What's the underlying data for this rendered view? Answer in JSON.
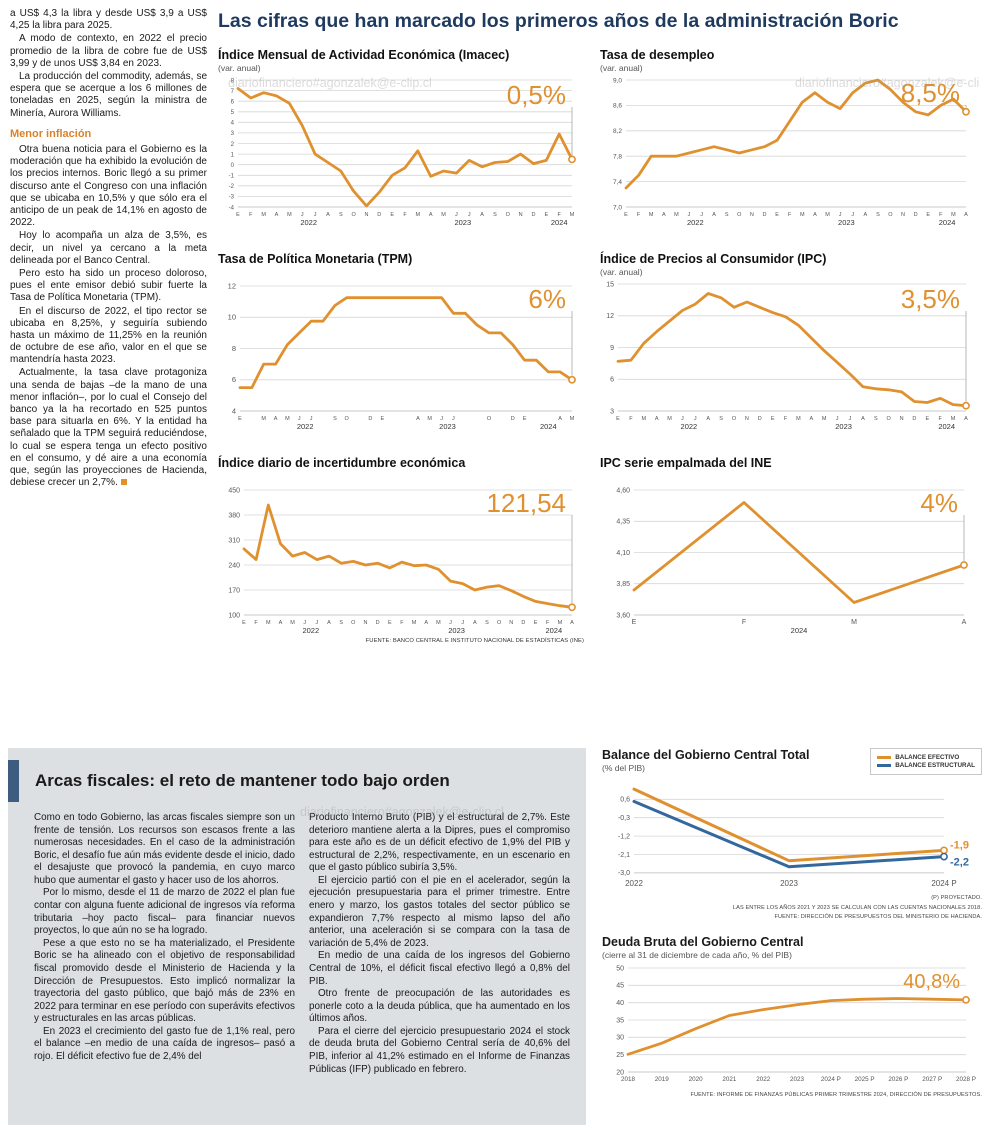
{
  "watermark": "diariofinanciero#agonzalek@e-clip.cl",
  "colors": {
    "accent": "#E0912F",
    "blue": "#33689E",
    "navy": "#1E3A5F",
    "graybox": "#DCE0E3",
    "bar": "#3D5C80"
  },
  "left_column": {
    "p1": "a US$ 4,3 la libra y desde US$ 3,9 a US$ 4,25 la libra para 2025.",
    "p2": "A modo de contexto, en 2022 el precio promedio de la libra de cobre fue de US$ 3,99 y de unos US$ 3,84 en 2023.",
    "p3": "La producción del commodity, además, se espera que se acerque a los 6 millones de toneladas en 2025, según la ministra de Minería, Aurora Williams.",
    "subhead": "Menor inflación",
    "p4": "Otra buena noticia para el Gobierno es la moderación que ha exhibido la evolución de los precios internos. Boric llegó a su primer discurso ante el Congreso con una inflación que se ubicaba en 10,5% y que sólo era el anticipo de un peak de 14,1% en agosto de 2022.",
    "p5": "Hoy lo acompaña un alza de 3,5%, es decir, un nivel ya cercano a la meta delineada por el Banco Central.",
    "p6": "Pero esto ha sido un proceso doloroso, pues el ente emisor debió subir fuerte la Tasa de Política Monetaria (TPM).",
    "p7": "En el discurso de 2022, el tipo rector se ubicaba en 8,25%, y seguiría subiendo hasta un máximo de 11,25% en la reunión de octubre de ese año, valor en el que se mantendría hasta 2023.",
    "p8": "Actualmente, la tasa clave protagoniza una senda de bajas –de la mano de una menor inflación–, por lo cual el Consejo del banco ya la ha recortado en 525 puntos base para situarla en 6%. Y la entidad ha señalado que la TPM seguirá reduciéndose, lo cual se espera tenga un efecto positivo en el consumo, y dé aire a una economía que, según las proyecciones de Hacienda, debiese crecer un 2,7%."
  },
  "main": {
    "title": "Las cifras que han marcado los primeros años de la administración Boric",
    "source_note": "FUENTE: BANCO CENTRAL E INSTITUTO NACIONAL DE ESTADÍSTICAS (INE)"
  },
  "bottom": {
    "headline": "Arcas fiscales: el reto de mantener todo bajo orden",
    "col1": {
      "p1": "Como en todo Gobierno, las arcas fiscales siempre son un frente de tensión. Los recursos son escasos frente a las numerosas necesidades. En el caso de la administración Boric, el desafío fue aún más evidente desde el inicio, dado el desajuste que provocó la pandemia, en cuyo marco hubo que aumentar el gasto y hacer uso de los ahorros.",
      "p2": "Por lo mismo, desde el 11 de marzo de 2022 el plan fue contar con alguna fuente adicional de ingresos vía reforma tributaria –hoy pacto fiscal– para financiar nuevos proyectos, lo que aún no se ha logrado.",
      "p3": "Pese a que esto no se ha materializado, el Presidente Boric se ha alineado con el objetivo de responsabilidad fiscal promovido desde el Ministerio de Hacienda y la Dirección de Presupuestos. Esto implicó normalizar la trayectoria del gasto público, que bajó más de 23% en 2022 para terminar en ese período con superávits efectivos y estructurales en las arcas públicas.",
      "p4": "En 2023 el crecimiento del gasto fue de 1,1% real, pero el balance –en medio de una caída de ingresos– pasó a rojo. El déficit efectivo fue de 2,4% del"
    },
    "col2": {
      "p1": "Producto Interno Bruto (PIB) y el estructural de 2,7%. Este deterioro mantiene alerta a la Dipres, pues el compromiso para este año es de un déficit efectivo de 1,9% del PIB y estructural de 2,2%, respectivamente, en un escenario en que el gasto público subiría 3,5%.",
      "p2": "El ejercicio partió con el pie en el acelerador, según la ejecución presupuestaria para el primer trimestre. Entre enero y marzo, los gastos totales del sector público se expandieron 7,7% respecto al mismo lapso del año anterior, una aceleración si se compara con la tasa de variación de 5,4% de 2023.",
      "p3": "En medio de una caída de los ingresos del Gobierno Central de 10%, el déficit fiscal efectivo llegó a 0,8% del PIB.",
      "p4": "Otro frente de preocupación de las autoridades es ponerle coto a la deuda pública, que ha aumentado en los últimos años.",
      "p5": "Para el cierre del ejercicio presupuestario 2024 el stock de deuda bruta del Gobierno Central sería de 40,6% del PIB, inferior al 41,2% estimado en el Informe de Finanzas Públicas (IFP) publicado en febrero."
    }
  },
  "chart_data": [
    {
      "id": "imacec",
      "type": "line",
      "title": "Índice Mensual de Actividad Económica (Imacec)",
      "subtitle": "(var. anual)",
      "label": "0,5%",
      "label_y": 28,
      "guide": true,
      "ylim": [
        -4,
        8
      ],
      "ytick_size": 6,
      "yticks": [
        8,
        7,
        6,
        5,
        4,
        3,
        2,
        1,
        0,
        -1,
        -2,
        -3,
        -4
      ],
      "ytick_labels": [
        "8",
        "7",
        "6",
        "5",
        "4",
        "3",
        "2",
        "1",
        "0",
        "-1",
        "-2",
        "-3",
        "-4"
      ],
      "pad": [
        4,
        12,
        21,
        20
      ],
      "x_labels": [
        "E",
        "F",
        "M",
        "A",
        "M",
        "J",
        "J",
        "A",
        "S",
        "O",
        "N",
        "D",
        "E",
        "F",
        "M",
        "A",
        "M",
        "J",
        "J",
        "A",
        "S",
        "O",
        "N",
        "D",
        "E",
        "F",
        "M"
      ],
      "year_labels": [
        {
          "t": "2022",
          "i": 5.5
        },
        {
          "t": "2023",
          "i": 17.5
        },
        {
          "t": "2024",
          "i": 25
        }
      ],
      "series": [
        {
          "name": "Imacec",
          "color": "#E0912F",
          "end_marker": true,
          "values": [
            7.2,
            6.3,
            6.8,
            6.5,
            5.8,
            3.7,
            1.0,
            0.2,
            -0.6,
            -2.5,
            -3.9,
            -2.6,
            -1.0,
            -0.3,
            1.3,
            -1.1,
            -0.6,
            -0.8,
            0.4,
            -0.2,
            0.2,
            0.3,
            1.0,
            0.1,
            0.4,
            2.9,
            0.5
          ]
        }
      ]
    },
    {
      "id": "desempleo",
      "type": "line",
      "title": "Tasa de desempleo",
      "subtitle": "(var. anual)",
      "label": "8,5%",
      "label_y": 26,
      "guide": true,
      "ylim": [
        7.0,
        9.0
      ],
      "ytick_size": 6.5,
      "yticks": [
        9.0,
        8.6,
        8.2,
        7.8,
        7.4,
        7.0
      ],
      "ytick_labels": [
        "9,0",
        "8,6",
        "8,2",
        "7,8",
        "7,4",
        "7,0"
      ],
      "pad": [
        4,
        14,
        21,
        26
      ],
      "x_labels": [
        "E",
        "F",
        "M",
        "A",
        "M",
        "J",
        "J",
        "A",
        "S",
        "O",
        "N",
        "D",
        "E",
        "F",
        "M",
        "A",
        "M",
        "J",
        "J",
        "A",
        "S",
        "O",
        "N",
        "D",
        "E",
        "F",
        "M",
        "A"
      ],
      "year_labels": [
        {
          "t": "2022",
          "i": 5.5
        },
        {
          "t": "2023",
          "i": 17.5
        },
        {
          "t": "2024",
          "i": 25.5
        }
      ],
      "series": [
        {
          "name": "Tasa de desempleo",
          "color": "#E0912F",
          "end_marker": true,
          "values": [
            7.3,
            7.5,
            7.8,
            7.8,
            7.8,
            7.85,
            7.9,
            7.95,
            7.9,
            7.85,
            7.9,
            7.95,
            8.05,
            8.35,
            8.65,
            8.8,
            8.65,
            8.55,
            8.8,
            8.95,
            9.0,
            8.85,
            8.65,
            8.5,
            8.45,
            8.6,
            8.7,
            8.5
          ]
        }
      ]
    },
    {
      "id": "tpm",
      "type": "line",
      "title": "Tasa de Política Monetaria (TPM)",
      "subtitle": "",
      "label": "6%",
      "label_y": 28,
      "guide": true,
      "ylim": [
        4,
        12
      ],
      "ytick_size": 7.5,
      "yticks": [
        12,
        10,
        8,
        6,
        4
      ],
      "ytick_labels": [
        "12",
        "10",
        "8",
        "6",
        "4"
      ],
      "pad": [
        6,
        12,
        21,
        22
      ],
      "x_labels": [
        "E",
        "",
        "M",
        "A",
        "M",
        "J",
        "J",
        "",
        "S",
        "O",
        "",
        "D",
        "E",
        "",
        "",
        "A",
        "M",
        "J",
        "J",
        "",
        "",
        "O",
        "",
        "D",
        "E",
        "",
        "",
        "A",
        "M"
      ],
      "year_labels": [
        {
          "t": "2022",
          "i": 5.5
        },
        {
          "t": "2023",
          "i": 17.5
        },
        {
          "t": "2024",
          "i": 26
        }
      ],
      "series": [
        {
          "name": "TPM",
          "color": "#E0912F",
          "end_marker": true,
          "values": [
            5.5,
            5.5,
            7.0,
            7.0,
            8.25,
            9.0,
            9.75,
            9.75,
            10.75,
            11.25,
            11.25,
            11.25,
            11.25,
            11.25,
            11.25,
            11.25,
            11.25,
            11.25,
            10.25,
            10.25,
            9.5,
            9.0,
            9.0,
            8.25,
            7.25,
            7.25,
            6.5,
            6.5,
            6.0
          ]
        }
      ]
    },
    {
      "id": "ipc",
      "type": "line",
      "title": "Índice de Precios al Consumidor (IPC)",
      "subtitle": "(var. anual)",
      "label": "3,5%",
      "label_y": 28,
      "guide": true,
      "ylim": [
        3,
        15
      ],
      "ytick_size": 7,
      "yticks": [
        15,
        12,
        9,
        6,
        3
      ],
      "ytick_labels": [
        "15",
        "12",
        "9",
        "6",
        "3"
      ],
      "pad": [
        4,
        14,
        21,
        18
      ],
      "x_labels": [
        "E",
        "F",
        "M",
        "A",
        "M",
        "J",
        "J",
        "A",
        "S",
        "O",
        "N",
        "D",
        "E",
        "F",
        "M",
        "A",
        "M",
        "J",
        "J",
        "A",
        "S",
        "O",
        "N",
        "D",
        "E",
        "F",
        "M",
        "A"
      ],
      "year_labels": [
        {
          "t": "2022",
          "i": 5.5
        },
        {
          "t": "2023",
          "i": 17.5
        },
        {
          "t": "2024",
          "i": 25.5
        }
      ],
      "series": [
        {
          "name": "IPC",
          "color": "#E0912F",
          "end_marker": true,
          "values": [
            7.7,
            7.8,
            9.4,
            10.5,
            11.5,
            12.5,
            13.1,
            14.1,
            13.7,
            12.8,
            13.3,
            12.8,
            12.3,
            11.9,
            11.1,
            9.9,
            8.7,
            7.6,
            6.5,
            5.3,
            5.1,
            5.0,
            4.8,
            3.9,
            3.8,
            4.2,
            3.6,
            3.5
          ]
        }
      ]
    },
    {
      "id": "incertidumbre",
      "type": "line",
      "title": "Índice diario de incertidumbre económica",
      "subtitle": "",
      "label": "121,54",
      "label_y": 28,
      "guide": true,
      "ylim": [
        100,
        450
      ],
      "ytick_size": 7,
      "yticks": [
        450,
        380,
        310,
        240,
        170,
        100
      ],
      "ytick_labels": [
        "450",
        "380",
        "310",
        "240",
        "170",
        "100"
      ],
      "pad": [
        6,
        12,
        21,
        26
      ],
      "x_labels": [
        "E",
        "F",
        "M",
        "A",
        "M",
        "J",
        "J",
        "A",
        "S",
        "O",
        "N",
        "D",
        "E",
        "F",
        "M",
        "A",
        "M",
        "J",
        "J",
        "A",
        "S",
        "O",
        "N",
        "D",
        "E",
        "F",
        "M",
        "A"
      ],
      "year_labels": [
        {
          "t": "2022",
          "i": 5.5
        },
        {
          "t": "2023",
          "i": 17.5
        },
        {
          "t": "2024",
          "i": 25.5
        }
      ],
      "series": [
        {
          "name": "Incertidumbre económica",
          "color": "#E0912F",
          "end_marker": true,
          "values": [
            285,
            255,
            408,
            300,
            265,
            275,
            255,
            265,
            245,
            250,
            240,
            245,
            232,
            248,
            238,
            240,
            228,
            195,
            188,
            170,
            178,
            182,
            168,
            152,
            138,
            132,
            126,
            121.54
          ]
        }
      ]
    },
    {
      "id": "ipc_ine",
      "type": "line",
      "title": "IPC serie empalmada del INE",
      "subtitle": "",
      "label": "4%",
      "label_y": 28,
      "guide": true,
      "ylim": [
        3.6,
        4.6
      ],
      "ytick_size": 7,
      "yticks": [
        4.6,
        4.35,
        4.1,
        3.85,
        3.6
      ],
      "ytick_labels": [
        "4,60",
        "4,35",
        "4,10",
        "3,85",
        "3,60"
      ],
      "pad": [
        6,
        16,
        21,
        34
      ],
      "x_label_size": 7,
      "x_labels": [
        "E",
        "F",
        "M",
        "A"
      ],
      "year_labels": [
        {
          "t": "2024",
          "i": 1.5
        }
      ],
      "series": [
        {
          "name": "IPC serie empalmada",
          "color": "#E0912F",
          "end_marker": true,
          "values": [
            3.8,
            4.5,
            3.7,
            4.0
          ]
        }
      ]
    },
    {
      "id": "balance",
      "type": "line",
      "title": "Balance del Gobierno Central Total",
      "subtitle": "(% del PIB)",
      "note1": "(P) PROYECTADO.",
      "note2": "LAS ENTRE LOS AÑOS 2021 Y 2023 SE CALCULAN  CON LAS CUENTAS NACIONALES 2018.",
      "note3": "FUENTE: DIRECCIÓN DE PRESUPUESTOS DEL MINISTERIO DE HACIENDA.",
      "ylim": [
        -3.2,
        1.4
      ],
      "ytick_size": 7,
      "lw": 3,
      "yticks": [
        0.6,
        -0.3,
        -1.2,
        -2.1,
        -3.0
      ],
      "ytick_labels": [
        "0,6",
        "-0,3",
        "-1,2",
        "-2,1",
        "-3,0"
      ],
      "pad": [
        8,
        38,
        16,
        32
      ],
      "x_label_size": 8,
      "x_labels": [
        "2022",
        "2023",
        "2024 P"
      ],
      "series": [
        {
          "name": "BALANCE EFECTIVO",
          "color": "#E0912F",
          "end_marker": true,
          "end_label": "-1,9",
          "label_dy": -2,
          "values": [
            1.1,
            -2.4,
            -1.9
          ]
        },
        {
          "name": "BALANCE ESTRUCTURAL",
          "color": "#33689E",
          "end_marker": true,
          "end_label": "-2,2",
          "label_dy": 9,
          "values": [
            0.5,
            -2.7,
            -2.2
          ]
        }
      ]
    },
    {
      "id": "deuda",
      "type": "line",
      "title": "Deuda Bruta del Gobierno Central",
      "subtitle": "(cierre al 31 de diciembre de cada año, % del PIB)",
      "note": "FUENTE: INFORME DE FINANZAS PÚBLICAS PRIMER TRIMESTRE 2024, DIRECCIÓN DE PRESUPUESTOS.",
      "label": "40,8%",
      "label_y": 26,
      "label_size": 20,
      "guide": false,
      "ylim": [
        20,
        50
      ],
      "ytick_size": 7,
      "yticks": [
        50,
        45,
        40,
        35,
        30,
        25,
        20
      ],
      "ytick_labels": [
        "50",
        "45",
        "40",
        "35",
        "30",
        "25",
        "20"
      ],
      "pad": [
        6,
        16,
        18,
        26
      ],
      "x_label_size": 6.3,
      "x_labels": [
        "2018",
        "2019",
        "2020",
        "2021",
        "2022",
        "2023",
        "2024 P",
        "2025 P",
        "2026 P",
        "2027 P",
        "2028 P"
      ],
      "series": [
        {
          "name": "Deuda bruta",
          "color": "#E0912F",
          "end_marker": true,
          "values": [
            25.1,
            28.3,
            32.5,
            36.3,
            38.0,
            39.4,
            40.6,
            41.0,
            41.2,
            41.0,
            40.8
          ]
        }
      ]
    }
  ]
}
